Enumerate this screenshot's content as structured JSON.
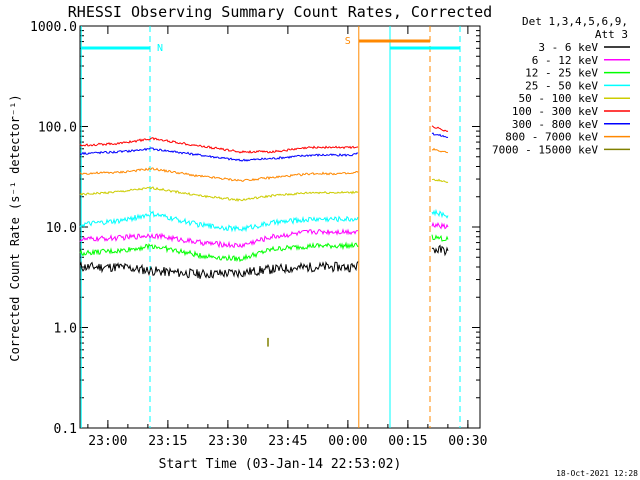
{
  "chart_data": {
    "type": "line",
    "title": "RHESSI Observing Summary Count Rates, Corrected",
    "xlabel": "Start Time (03-Jan-14 22:53:02)",
    "ylabel": "Corrected Count Rate (s⁻¹ detector⁻¹)",
    "y_scale": "log",
    "ylim": [
      0.1,
      1000
    ],
    "y_ticks": [
      {
        "value": 0.1,
        "label": "0.1"
      },
      {
        "value": 1,
        "label": "1.0"
      },
      {
        "value": 10,
        "label": "10.0"
      },
      {
        "value": 100,
        "label": "100.0"
      },
      {
        "value": 1000,
        "label": "1000.0"
      }
    ],
    "xlim_minutes": [
      0,
      38.2
    ],
    "x_ticks": [
      {
        "minutes": 6.97,
        "label": "23:00"
      },
      {
        "minutes": 21.97,
        "label": "23:15"
      },
      {
        "minutes": 36.97,
        "label": "23:30"
      },
      {
        "minutes": 51.97,
        "label": "23:45"
      },
      {
        "minutes": 66.97,
        "label": "00:00"
      },
      {
        "minutes": 81.97,
        "label": "00:15"
      },
      {
        "minutes": 96.97,
        "label": "00:30"
      }
    ],
    "legend_header": [
      "Det 1,3,4,5,6,9,",
      "Att 3"
    ],
    "legend_position": "right",
    "series": [
      {
        "name": "3 - 6 keV",
        "color": "#000000",
        "points": [
          [
            0,
            4.0
          ],
          [
            10,
            4.0
          ],
          [
            20,
            3.6
          ],
          [
            30,
            3.4
          ],
          [
            40,
            3.5
          ],
          [
            48,
            3.8
          ],
          [
            58,
            4.0
          ],
          [
            68,
            4.0
          ],
          [
            88,
            6.0
          ],
          [
            92,
            5.8
          ]
        ]
      },
      {
        "name": "6 - 12 keV",
        "color": "#ff00ff",
        "points": [
          [
            0,
            7.5
          ],
          [
            10,
            7.8
          ],
          [
            18,
            8.3
          ],
          [
            30,
            7.0
          ],
          [
            40,
            6.5
          ],
          [
            48,
            8.0
          ],
          [
            58,
            9.0
          ],
          [
            68,
            9.0
          ],
          [
            88,
            10.5
          ],
          [
            92,
            10.0
          ]
        ]
      },
      {
        "name": "12 - 25 keV",
        "color": "#00ff00",
        "points": [
          [
            0,
            5.5
          ],
          [
            10,
            5.8
          ],
          [
            18,
            6.5
          ],
          [
            30,
            5.2
          ],
          [
            40,
            4.8
          ],
          [
            48,
            6.0
          ],
          [
            58,
            6.5
          ],
          [
            68,
            6.5
          ],
          [
            88,
            8.0
          ],
          [
            92,
            7.5
          ]
        ]
      },
      {
        "name": "25 - 50 keV",
        "color": "#00ffff",
        "points": [
          [
            0,
            10.5
          ],
          [
            10,
            11.5
          ],
          [
            18,
            13.5
          ],
          [
            30,
            10.5
          ],
          [
            40,
            9.5
          ],
          [
            48,
            11.0
          ],
          [
            58,
            12.0
          ],
          [
            68,
            12.0
          ],
          [
            88,
            14.0
          ],
          [
            92,
            13.0
          ]
        ]
      },
      {
        "name": "50 - 100 keV",
        "color": "#cccc00",
        "points": [
          [
            0,
            21
          ],
          [
            10,
            22.5
          ],
          [
            18,
            24.5
          ],
          [
            30,
            20.5
          ],
          [
            40,
            18.5
          ],
          [
            48,
            20.5
          ],
          [
            58,
            22
          ],
          [
            68,
            22
          ],
          [
            88,
            30
          ],
          [
            92,
            28
          ]
        ]
      },
      {
        "name": "100 - 300 keV",
        "color": "#ff0000",
        "points": [
          [
            0,
            65
          ],
          [
            10,
            68
          ],
          [
            18,
            76
          ],
          [
            30,
            64
          ],
          [
            40,
            56
          ],
          [
            48,
            56
          ],
          [
            58,
            62
          ],
          [
            68,
            62
          ],
          [
            88,
            100
          ],
          [
            92,
            90
          ]
        ]
      },
      {
        "name": "300 - 800 keV",
        "color": "#0000ff",
        "points": [
          [
            0,
            54
          ],
          [
            10,
            56
          ],
          [
            18,
            60
          ],
          [
            30,
            52
          ],
          [
            40,
            46
          ],
          [
            48,
            48
          ],
          [
            58,
            52
          ],
          [
            68,
            52
          ],
          [
            88,
            85
          ],
          [
            92,
            78
          ]
        ]
      },
      {
        "name": "800 - 7000 keV",
        "color": "#ff8800",
        "points": [
          [
            0,
            34
          ],
          [
            10,
            35
          ],
          [
            18,
            38
          ],
          [
            30,
            32
          ],
          [
            40,
            29
          ],
          [
            48,
            31
          ],
          [
            58,
            34
          ],
          [
            68,
            34
          ],
          [
            88,
            60
          ],
          [
            92,
            55
          ]
        ]
      },
      {
        "name": "7000 - 15000 keV",
        "color": "#808000",
        "points": [
          [
            47,
            0.65
          ],
          [
            47,
            1.0
          ]
        ]
      }
    ],
    "annotations": [
      {
        "label": "N",
        "color": "#00ffff"
      },
      {
        "label": "S",
        "color": "#ff8800"
      }
    ],
    "footer_date": "18-Oct-2021 12:28"
  }
}
